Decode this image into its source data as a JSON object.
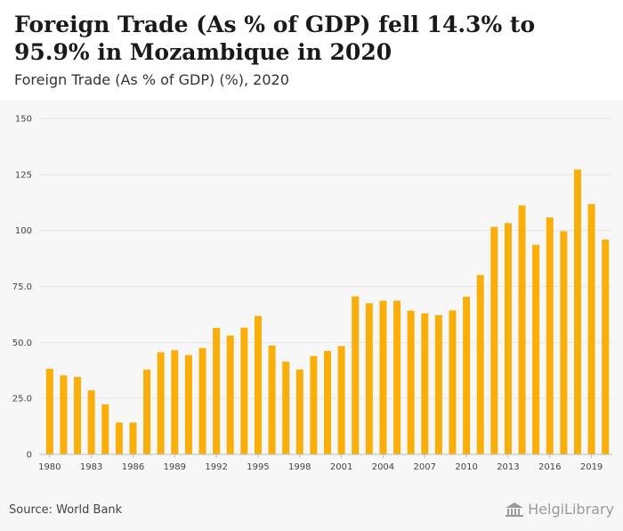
{
  "header": {
    "title": "Foreign Trade (As % of GDP) fell 14.3% to 95.9% in Mozambique in 2020",
    "subtitle": "Foreign Trade (As % of GDP) (%), 2020"
  },
  "footer": {
    "source": "Source: World Bank",
    "brand": "HelgiLibrary",
    "brand_icon": "library-building-icon"
  },
  "colors": {
    "bar": "#F9AE0A",
    "grid": "#e6e6e6",
    "tick_text": "#444444"
  },
  "chart_data": {
    "type": "bar",
    "categories": [
      1980,
      1981,
      1982,
      1983,
      1984,
      1985,
      1986,
      1987,
      1988,
      1989,
      1990,
      1991,
      1992,
      1993,
      1994,
      1995,
      1996,
      1997,
      1998,
      1999,
      2000,
      2001,
      2002,
      2003,
      2004,
      2005,
      2006,
      2007,
      2008,
      2009,
      2010,
      2011,
      2012,
      2013,
      2014,
      2015,
      2016,
      2017,
      2018,
      2019,
      2020
    ],
    "values": [
      38.2,
      35.3,
      34.6,
      28.6,
      22.3,
      14.2,
      14.2,
      37.9,
      45.6,
      46.5,
      44.3,
      47.5,
      56.5,
      53.1,
      56.6,
      61.8,
      48.6,
      41.4,
      37.9,
      43.9,
      46.2,
      48.4,
      70.6,
      67.5,
      68.6,
      68.6,
      64.2,
      63.0,
      62.2,
      64.3,
      70.4,
      80.1,
      101.6,
      103.3,
      111.2,
      93.6,
      105.8,
      99.7,
      127.2,
      111.8,
      95.9
    ],
    "x_tick_labels": [
      "1980",
      "1983",
      "1986",
      "1989",
      "1992",
      "1995",
      "1998",
      "2001",
      "2004",
      "2007",
      "2010",
      "2013",
      "2016",
      "2019"
    ],
    "y_ticks": [
      0,
      25,
      50,
      75,
      100,
      125,
      150
    ],
    "y_tick_labels": [
      "0",
      "25.0",
      "50.0",
      "75.0",
      "100",
      "125",
      "150"
    ],
    "ylim": [
      0,
      150
    ],
    "grid": true,
    "xlabel": "",
    "ylabel": ""
  }
}
